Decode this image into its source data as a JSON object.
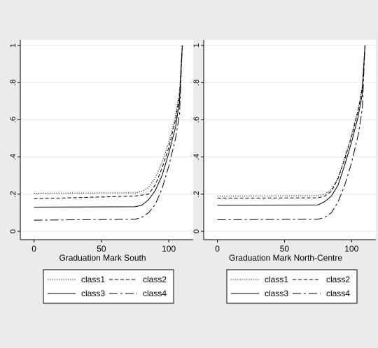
{
  "chart_data": [
    {
      "type": "line",
      "title": "",
      "xlabel": "Graduation Mark South",
      "ylabel": "",
      "xlim": [
        -5,
        115
      ],
      "ylim": [
        -0.03,
        1.0
      ],
      "xticks": [
        0,
        50,
        100
      ],
      "yticks": [
        0,
        0.2,
        0.4,
        0.6,
        0.8,
        1
      ],
      "ytick_labels": [
        "0",
        ".2",
        ".4",
        ".6",
        ".8",
        "1"
      ],
      "grid": "horizontal",
      "legend_position": "bottom",
      "legend_layout": [
        [
          "class1",
          "class2"
        ],
        [
          "class3",
          "class4"
        ]
      ],
      "series": [
        {
          "name": "class1",
          "style": "dotted",
          "points": [
            [
              0,
              0.205
            ],
            [
              75,
              0.207
            ],
            [
              80,
              0.215
            ],
            [
              85,
              0.235
            ],
            [
              90,
              0.29
            ],
            [
              95,
              0.37
            ],
            [
              100,
              0.48
            ],
            [
              105,
              0.62
            ],
            [
              108,
              0.76
            ],
            [
              110,
              1.0
            ]
          ]
        },
        {
          "name": "class2",
          "style": "dashed",
          "points": [
            [
              0,
              0.175
            ],
            [
              75,
              0.19
            ],
            [
              80,
              0.195
            ],
            [
              85,
              0.2
            ],
            [
              90,
              0.25
            ],
            [
              95,
              0.34
            ],
            [
              100,
              0.45
            ],
            [
              105,
              0.6
            ],
            [
              108,
              0.73
            ],
            [
              110,
              1.0
            ]
          ]
        },
        {
          "name": "class3",
          "style": "solid",
          "points": [
            [
              0,
              0.13
            ],
            [
              75,
              0.132
            ],
            [
              80,
              0.14
            ],
            [
              85,
              0.17
            ],
            [
              90,
              0.22
            ],
            [
              95,
              0.3
            ],
            [
              100,
              0.42
            ],
            [
              105,
              0.56
            ],
            [
              108,
              0.7
            ],
            [
              110,
              1.0
            ]
          ]
        },
        {
          "name": "class4",
          "style": "longdash-dot",
          "points": [
            [
              0,
              0.06
            ],
            [
              75,
              0.065
            ],
            [
              80,
              0.075
            ],
            [
              85,
              0.1
            ],
            [
              90,
              0.145
            ],
            [
              95,
              0.23
            ],
            [
              100,
              0.35
            ],
            [
              105,
              0.5
            ],
            [
              108,
              0.63
            ],
            [
              110,
              1.0
            ]
          ]
        }
      ]
    },
    {
      "type": "line",
      "title": "",
      "xlabel": "Graduation Mark North-Centre",
      "ylabel": "",
      "xlim": [
        -5,
        115
      ],
      "ylim": [
        -0.03,
        1.0
      ],
      "xticks": [
        0,
        50,
        100
      ],
      "yticks": [
        0,
        0.2,
        0.4,
        0.6,
        0.8,
        1
      ],
      "ytick_labels": [
        "0",
        ".2",
        ".4",
        ".6",
        ".8",
        "1"
      ],
      "grid": "horizontal",
      "legend_position": "bottom",
      "legend_layout": [
        [
          "class1",
          "class2"
        ],
        [
          "class3",
          "class4"
        ]
      ],
      "series": [
        {
          "name": "class1",
          "style": "dotted",
          "points": [
            [
              0,
              0.19
            ],
            [
              75,
              0.192
            ],
            [
              80,
              0.2
            ],
            [
              85,
              0.225
            ],
            [
              90,
              0.29
            ],
            [
              95,
              0.4
            ],
            [
              100,
              0.52
            ],
            [
              105,
              0.66
            ],
            [
              108,
              0.78
            ],
            [
              110,
              1.0
            ]
          ]
        },
        {
          "name": "class2",
          "style": "dashed",
          "points": [
            [
              0,
              0.178
            ],
            [
              75,
              0.18
            ],
            [
              80,
              0.19
            ],
            [
              85,
              0.215
            ],
            [
              90,
              0.285
            ],
            [
              95,
              0.39
            ],
            [
              100,
              0.51
            ],
            [
              105,
              0.65
            ],
            [
              108,
              0.77
            ],
            [
              110,
              1.0
            ]
          ]
        },
        {
          "name": "class3",
          "style": "solid",
          "points": [
            [
              0,
              0.14
            ],
            [
              75,
              0.142
            ],
            [
              80,
              0.16
            ],
            [
              85,
              0.19
            ],
            [
              90,
              0.25
            ],
            [
              95,
              0.36
            ],
            [
              100,
              0.48
            ],
            [
              105,
              0.62
            ],
            [
              108,
              0.74
            ],
            [
              110,
              1.0
            ]
          ]
        },
        {
          "name": "class4",
          "style": "longdash-dot",
          "points": [
            [
              0,
              0.062
            ],
            [
              75,
              0.065
            ],
            [
              80,
              0.075
            ],
            [
              85,
              0.1
            ],
            [
              90,
              0.16
            ],
            [
              95,
              0.25
            ],
            [
              100,
              0.37
            ],
            [
              105,
              0.52
            ],
            [
              108,
              0.66
            ],
            [
              110,
              1.0
            ]
          ]
        }
      ]
    }
  ]
}
